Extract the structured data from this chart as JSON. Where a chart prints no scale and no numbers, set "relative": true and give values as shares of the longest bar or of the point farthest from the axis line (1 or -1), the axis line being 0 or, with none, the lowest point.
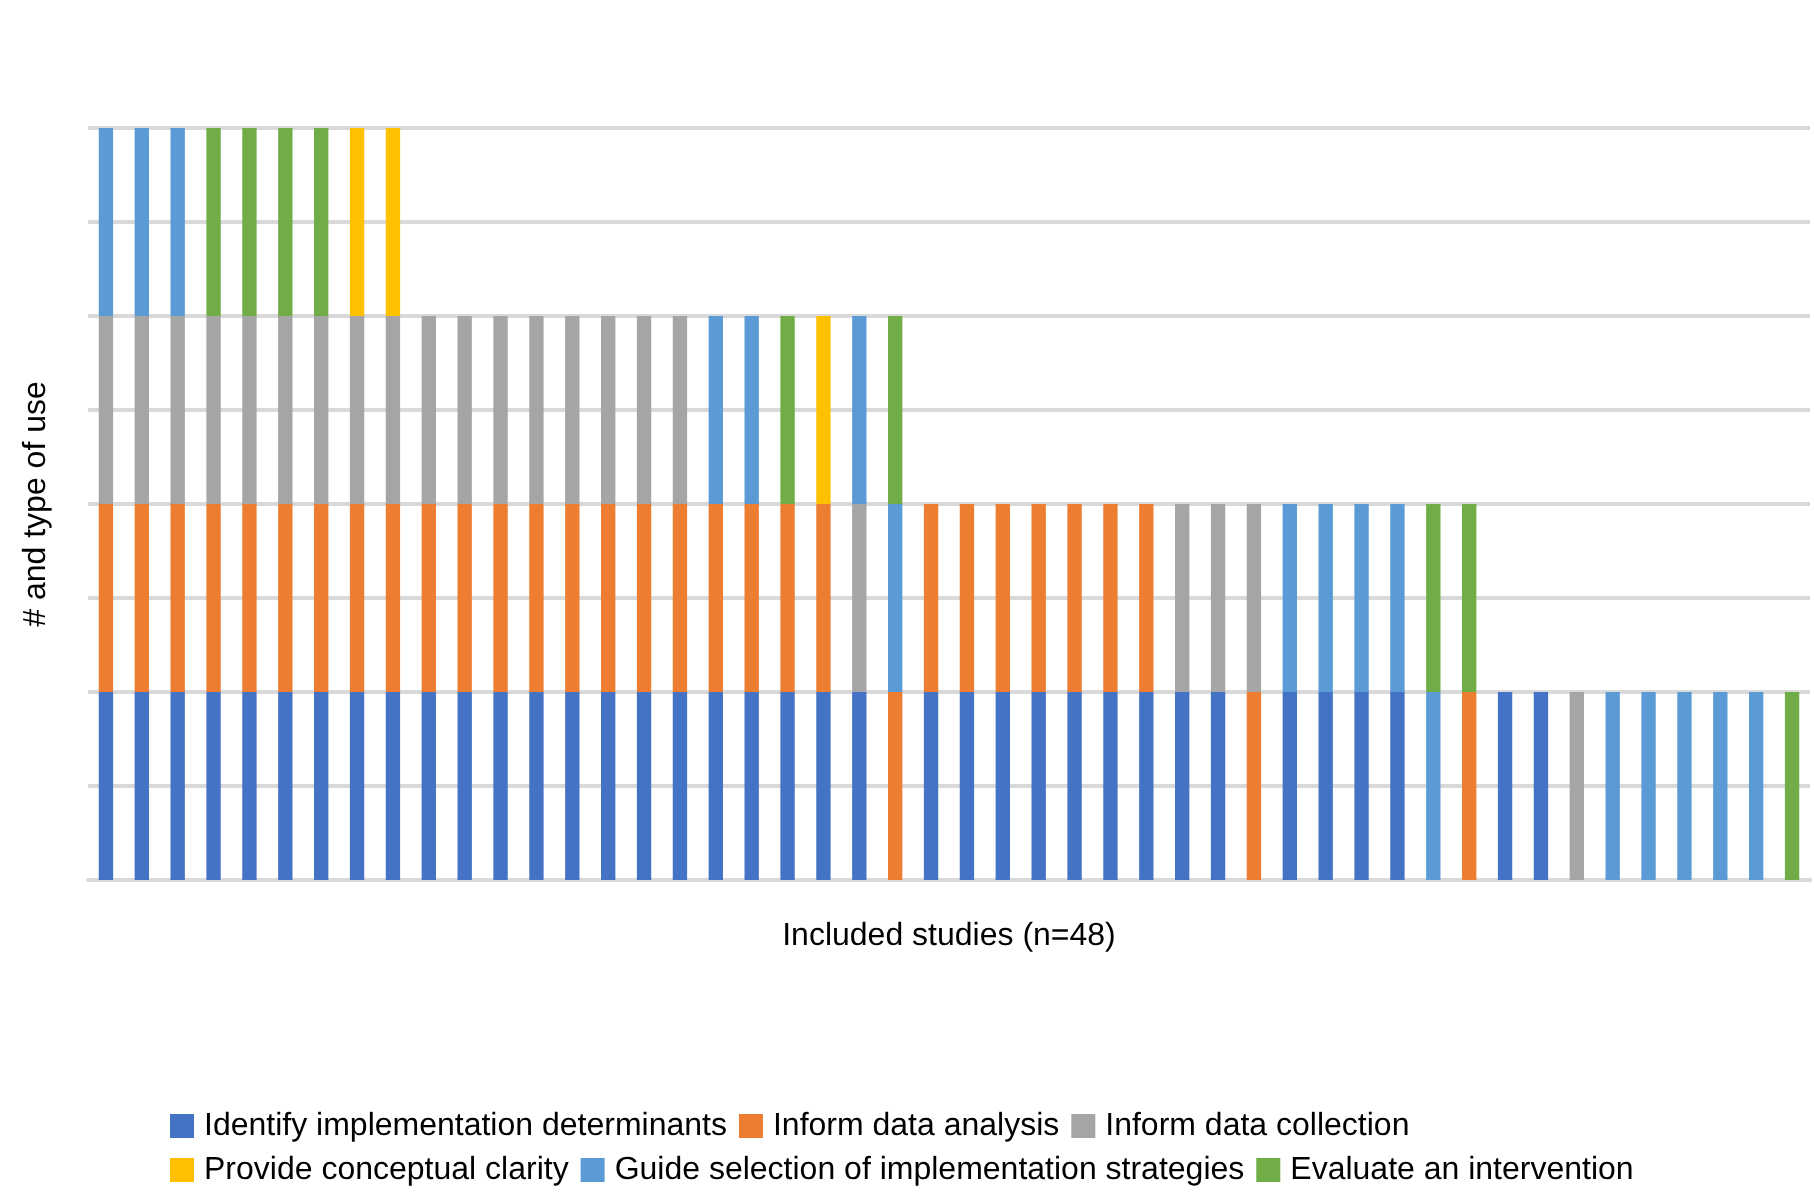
{
  "chart_data": {
    "type": "bar",
    "stacked": true,
    "relative": true,
    "xlabel": "Included studies (n=48)",
    "ylabel": "# and type of use",
    "grid": "y",
    "legend": "bottom",
    "categories": [
      null,
      null,
      null,
      null,
      null,
      null,
      null,
      null,
      null,
      null,
      null,
      null,
      null,
      null,
      null,
      null,
      null,
      null,
      null,
      null,
      null,
      null,
      null,
      null,
      null,
      null,
      null,
      null,
      null,
      null,
      null,
      null,
      null,
      null,
      null,
      null,
      null,
      null,
      null,
      null,
      null,
      null,
      null,
      null,
      null,
      null,
      null,
      null
    ],
    "series": [
      {
        "name": "Identify implementation determinants",
        "color": "#4472c4",
        "values": [
          0.25,
          0.25,
          0.25,
          0.25,
          0.25,
          0.25,
          0.25,
          0.25,
          0.25,
          0.25,
          0.25,
          0.25,
          0.25,
          0.25,
          0.25,
          0.25,
          0.25,
          0.25,
          0.25,
          0.25,
          0.25,
          0.25,
          null,
          0.25,
          0.25,
          0.25,
          0.25,
          0.25,
          0.25,
          0.25,
          0.25,
          0.25,
          null,
          0.25,
          0.25,
          0.25,
          0.25,
          null,
          null,
          0.25,
          0.25,
          null,
          null,
          null,
          null,
          null,
          null,
          null
        ]
      },
      {
        "name": "Inform data analysis",
        "color": "#ed7d31",
        "values": [
          0.25,
          0.25,
          0.25,
          0.25,
          0.25,
          0.25,
          0.25,
          0.25,
          0.25,
          0.25,
          0.25,
          0.25,
          0.25,
          0.25,
          0.25,
          0.25,
          0.25,
          0.25,
          0.25,
          0.25,
          0.25,
          null,
          0.25,
          0.25,
          0.25,
          0.25,
          0.25,
          0.25,
          0.25,
          0.25,
          null,
          null,
          0.25,
          null,
          null,
          null,
          null,
          null,
          0.25,
          null,
          null,
          null,
          null,
          null,
          null,
          null,
          null,
          null
        ]
      },
      {
        "name": "Inform data collection",
        "color": "#a5a5a5",
        "values": [
          0.25,
          0.25,
          0.25,
          0.25,
          0.25,
          0.25,
          0.25,
          0.25,
          0.25,
          0.25,
          0.25,
          0.25,
          0.25,
          0.25,
          0.25,
          0.25,
          0.25,
          null,
          null,
          null,
          null,
          0.25,
          null,
          null,
          null,
          null,
          null,
          null,
          null,
          null,
          0.25,
          0.25,
          0.25,
          null,
          null,
          null,
          null,
          null,
          null,
          null,
          null,
          0.25,
          null,
          null,
          null,
          null,
          null,
          null
        ]
      },
      {
        "name": "Provide conceptual clarity",
        "color": "#ffc000",
        "values": [
          null,
          null,
          null,
          null,
          null,
          null,
          null,
          0.25,
          0.25,
          null,
          null,
          null,
          null,
          null,
          null,
          null,
          null,
          null,
          null,
          null,
          0.25,
          null,
          null,
          null,
          null,
          null,
          null,
          null,
          null,
          null,
          null,
          null,
          null,
          null,
          null,
          null,
          null,
          null,
          null,
          null,
          null,
          null,
          null,
          null,
          null,
          null,
          null,
          null
        ]
      },
      {
        "name": "Guide selection of implementation strategies",
        "color": "#5b9bd5",
        "values": [
          0.25,
          0.25,
          0.25,
          null,
          null,
          null,
          null,
          null,
          null,
          null,
          null,
          null,
          null,
          null,
          null,
          null,
          null,
          0.25,
          0.25,
          null,
          null,
          0.25,
          0.25,
          null,
          null,
          null,
          null,
          null,
          null,
          null,
          null,
          null,
          null,
          0.25,
          0.25,
          0.25,
          0.25,
          0.25,
          null,
          null,
          null,
          null,
          0.25,
          0.25,
          0.25,
          0.25,
          0.25,
          null
        ]
      },
      {
        "name": "Evaluate an intervention",
        "color": "#70ad47",
        "values": [
          null,
          null,
          null,
          0.25,
          0.25,
          0.25,
          0.25,
          null,
          null,
          null,
          null,
          null,
          null,
          null,
          null,
          null,
          null,
          null,
          null,
          0.25,
          null,
          null,
          0.25,
          null,
          null,
          null,
          null,
          null,
          null,
          null,
          null,
          null,
          null,
          null,
          null,
          null,
          null,
          0.25,
          0.25,
          null,
          null,
          null,
          null,
          null,
          null,
          null,
          null,
          0.25
        ]
      }
    ]
  }
}
